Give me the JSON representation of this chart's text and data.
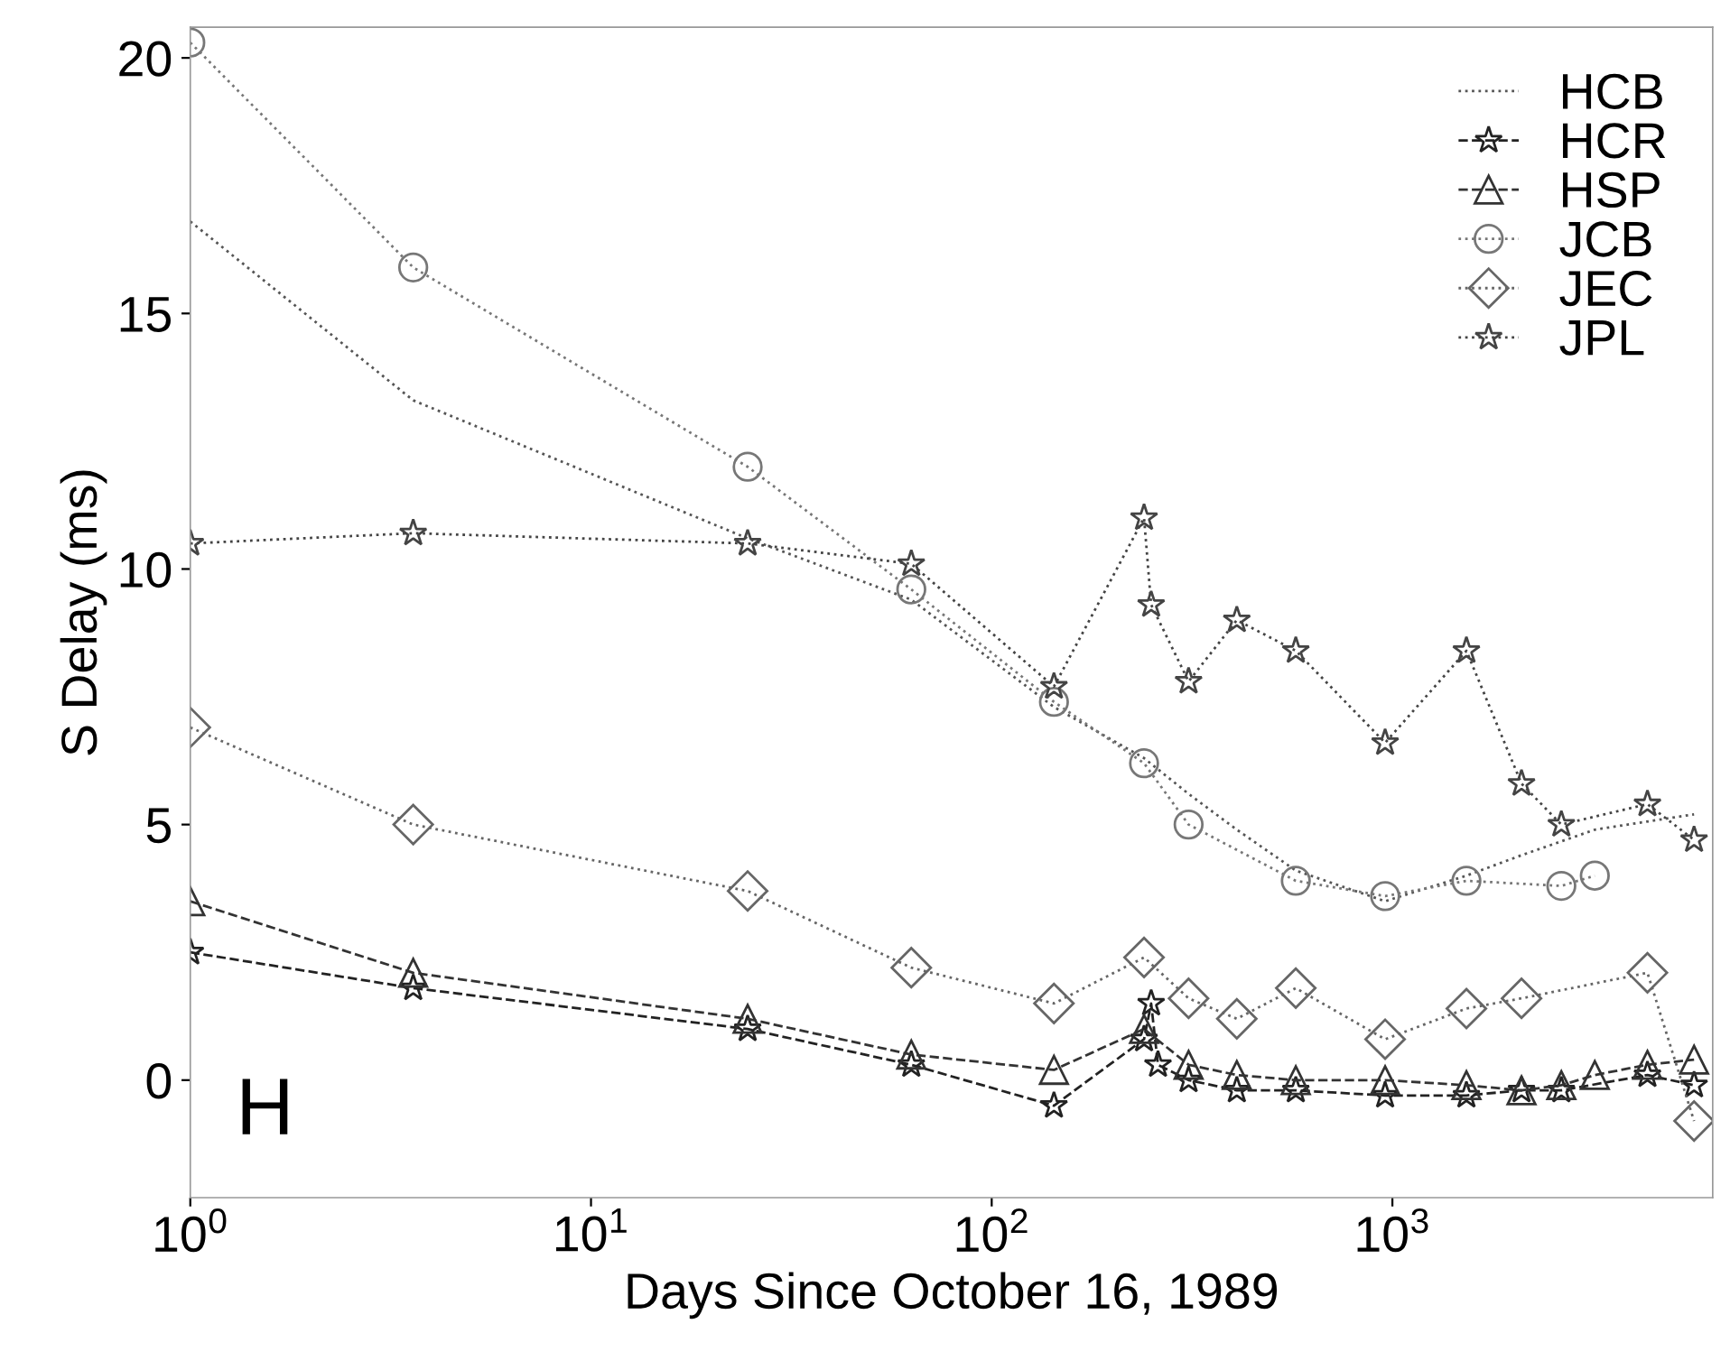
{
  "chart_data": {
    "type": "line",
    "xlabel": "Days Since October 16, 1989",
    "ylabel": "S Delay (ms)",
    "log": "x",
    "xlim": [
      1,
      6300
    ],
    "ylim": [
      -2.3,
      20.6
    ],
    "xticks": [
      {
        "value": 1,
        "label": "10$^{0}$"
      },
      {
        "value": 10,
        "label": "10$^{1}$"
      },
      {
        "value": 100,
        "label": "10$^{2}$"
      },
      {
        "value": 1000,
        "label": "10$^{3}$"
      }
    ],
    "yticks": [
      0,
      5,
      10,
      15,
      20
    ],
    "grid": false,
    "legend": "top right",
    "annotations": [
      "H"
    ],
    "series": [
      {
        "name": "HCB",
        "color": "#555555",
        "marker": "none",
        "line_style": "dotted",
        "x": [
          1,
          3.6,
          24.6,
          63,
          143,
          240,
          310,
          409,
          574,
          959,
          1530,
          2100,
          3200,
          5660
        ],
        "values": [
          16.8,
          13.3,
          10.6,
          9.4,
          7.3,
          6.3,
          5.6,
          4.9,
          4.1,
          3.5,
          4.0,
          4.4,
          4.9,
          5.2
        ]
      },
      {
        "name": "HCR",
        "color": "#222222",
        "marker": "star",
        "line_style": "dashed",
        "x": [
          1,
          3.6,
          24.6,
          63,
          143,
          240,
          250,
          260,
          310,
          409,
          574,
          959,
          1530,
          2100,
          2640,
          4330,
          5660
        ],
        "values": [
          2.5,
          1.8,
          1.0,
          0.3,
          -0.5,
          0.8,
          1.5,
          0.3,
          0.0,
          -0.2,
          -0.2,
          -0.3,
          -0.3,
          -0.2,
          -0.2,
          0.1,
          -0.1
        ]
      },
      {
        "name": "HSP",
        "color": "#333333",
        "marker": "triangle",
        "line_style": "dashed",
        "x": [
          1,
          3.6,
          24.6,
          63,
          143,
          240,
          310,
          409,
          574,
          959,
          1530,
          2100,
          2640,
          3200,
          4330,
          5660
        ],
        "values": [
          3.5,
          2.1,
          1.2,
          0.5,
          0.2,
          1.0,
          0.3,
          0.1,
          0.0,
          0.0,
          -0.1,
          -0.2,
          -0.1,
          0.1,
          0.3,
          0.4
        ]
      },
      {
        "name": "JCB",
        "color": "#777777",
        "marker": "circle",
        "line_style": "dotted",
        "x": [
          1,
          3.6,
          24.6,
          63,
          143,
          240,
          310,
          574,
          959,
          1530,
          2640,
          3200
        ],
        "values": [
          20.3,
          15.9,
          12.0,
          9.6,
          7.4,
          6.2,
          5.0,
          3.9,
          3.6,
          3.9,
          3.8,
          4.0
        ]
      },
      {
        "name": "JEC",
        "color": "#666666",
        "marker": "diamond",
        "line_style": "dotted",
        "x": [
          1,
          3.6,
          24.6,
          63,
          143,
          240,
          310,
          409,
          574,
          959,
          1530,
          2100,
          4330,
          5660
        ],
        "values": [
          6.9,
          5.0,
          3.7,
          2.2,
          1.5,
          2.4,
          1.6,
          1.2,
          1.8,
          0.8,
          1.4,
          1.6,
          2.1,
          -0.8
        ]
      },
      {
        "name": "JPL",
        "color": "#444444",
        "marker": "star",
        "line_style": "dotted",
        "x": [
          1,
          3.6,
          24.6,
          63,
          143,
          240,
          250,
          310,
          409,
          574,
          959,
          1530,
          2100,
          2640,
          4330,
          5660
        ],
        "values": [
          10.5,
          10.7,
          10.5,
          10.1,
          7.7,
          11.0,
          9.3,
          7.8,
          9.0,
          8.4,
          6.6,
          8.4,
          5.8,
          5.0,
          5.4,
          4.7
        ]
      }
    ]
  }
}
